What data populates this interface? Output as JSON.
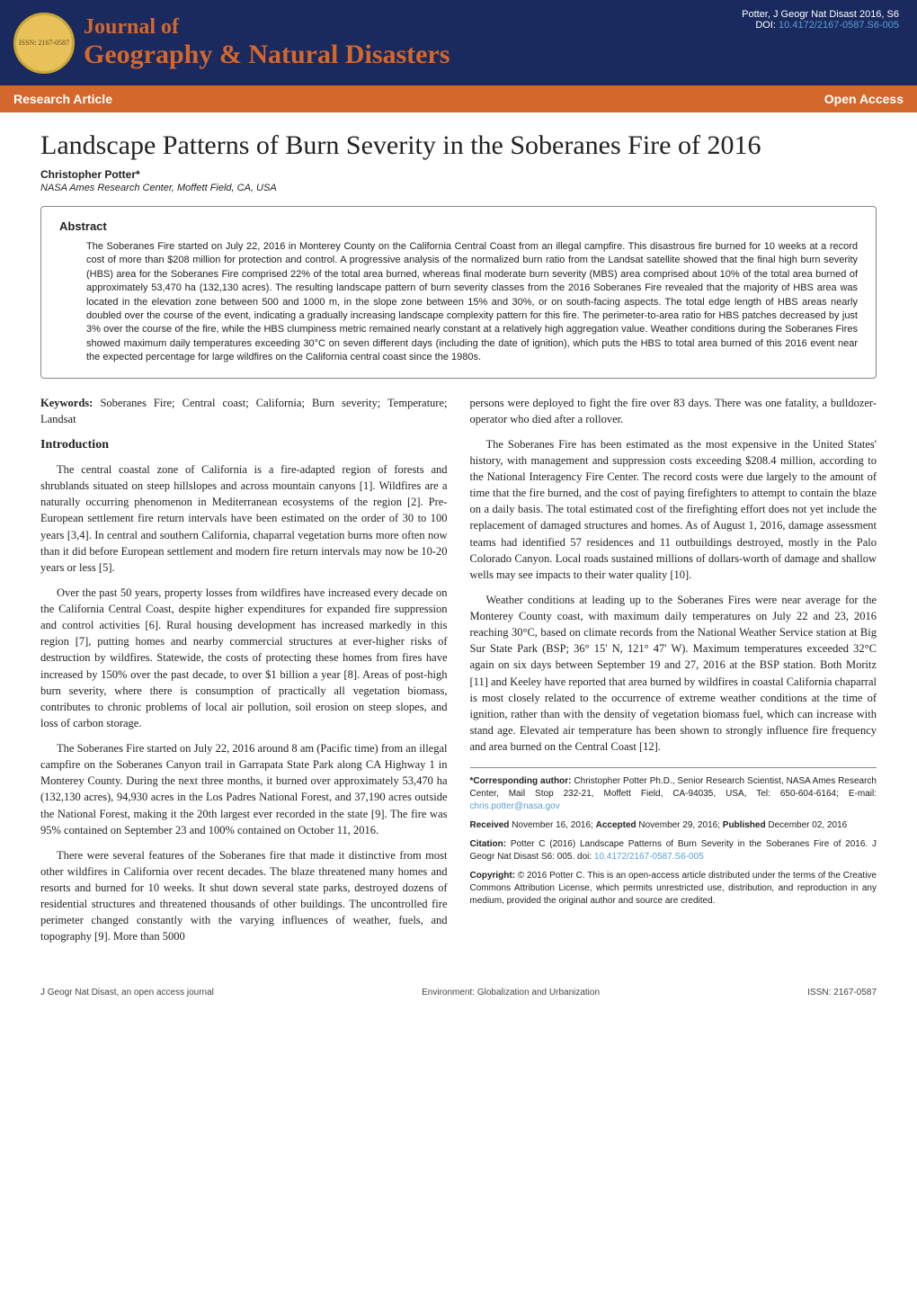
{
  "header": {
    "journal_of": "Journal of",
    "journal_name": "Geography & Natural Disasters",
    "issn_badge": "ISSN: 2167-0587",
    "citation_line": "Potter, J Geogr Nat Disast 2016, S6",
    "doi_label": "DOI:",
    "doi": "10.4172/2167-0587.S6-005"
  },
  "tabs": {
    "left": "Research Article",
    "right": "Open Access"
  },
  "article": {
    "title": "Landscape Patterns of Burn Severity in the Soberanes Fire of 2016",
    "author": "Christopher Potter*",
    "affiliation": "NASA Ames Research Center, Moffett Field, CA, USA"
  },
  "abstract": {
    "heading": "Abstract",
    "text": "The Soberanes Fire started on July 22, 2016 in Monterey County on the California Central Coast from an illegal campfire. This disastrous fire burned for 10 weeks at a record cost of more than $208 million for protection and control. A progressive analysis of the normalized burn ratio from the Landsat satellite showed that the final high burn severity (HBS) area for the Soberanes Fire comprised 22% of the total area burned, whereas final moderate burn severity (MBS) area comprised about 10% of the total area burned of approximately 53,470 ha (132,130 acres). The resulting landscape pattern of burn severity classes from the 2016 Soberanes Fire revealed that the majority of HBS area was located in the elevation zone between 500 and 1000 m, in the slope zone between 15% and 30%, or on south-facing aspects. The total edge length of HBS areas nearly doubled over the course of the event, indicating a gradually increasing landscape complexity pattern for this fire. The perimeter-to-area ratio for HBS patches decreased by just 3% over the course of the fire, while the HBS clumpiness metric remained nearly constant at a relatively high aggregation value. Weather conditions during the Soberanes Fires showed maximum daily temperatures exceeding 30°C on seven different days (including the date of ignition), which puts the HBS to total area burned of this 2016 event near the expected percentage for large wildfires on the California central coast since the 1980s."
  },
  "keywords": {
    "label": "Keywords:",
    "text": "Soberanes Fire; Central coast; California; Burn severity; Temperature; Landsat"
  },
  "intro": {
    "heading": "Introduction",
    "p1": "The central coastal zone of California is a fire-adapted region of forests and shrublands situated on steep hillslopes and across mountain canyons [1]. Wildfires are a naturally occurring phenomenon in Mediterranean ecosystems of the region [2]. Pre-European settlement fire return intervals have been estimated on the order of 30 to 100 years [3,4]. In central and southern California, chaparral vegetation burns more often now than it did before European settlement and modern fire return intervals may now be 10-20 years or less [5].",
    "p2": "Over the past 50 years, property losses from wildfires have increased every decade on the California Central Coast, despite higher expenditures for expanded fire suppression and control activities [6]. Rural housing development has increased markedly in this region [7], putting homes and nearby commercial structures at ever-higher risks of destruction by wildfires. Statewide, the costs of protecting these homes from fires have increased by 150% over the past decade, to over $1 billion a year [8]. Areas of post-high burn severity, where there is consumption of practically all vegetation biomass, contributes to chronic problems of local air pollution, soil erosion on steep slopes, and loss of carbon storage.",
    "p3": "The Soberanes Fire started on July 22, 2016 around 8 am (Pacific time) from an illegal campfire on the Soberanes Canyon trail in Garrapata State Park along CA Highway 1 in Monterey County. During the next three months, it burned over approximately 53,470 ha (132,130 acres), 94,930 acres in the Los Padres National Forest, and 37,190 acres outside the National Forest, making it the 20th largest ever recorded in the state [9]. The fire was 95% contained on September 23 and 100% contained on October 11, 2016.",
    "p4": "There were several features of the Soberanes fire that made it distinctive from most other wildfires in California over recent decades. The blaze threatened many homes and resorts and burned for 10 weeks. It shut down several state parks, destroyed dozens of residential structures and threatened thousands of other buildings. The uncontrolled fire perimeter changed constantly with the varying influences of weather, fuels, and topography [9]. More than 5000"
  },
  "right_col": {
    "p1": "persons were deployed to fight the fire over 83 days. There was one fatality, a bulldozer-operator who died after a rollover.",
    "p2": "The Soberanes Fire has been estimated as the most expensive in the United States' history, with management and suppression costs exceeding $208.4 million, according to the National Interagency Fire Center. The record costs were due largely to the amount of time that the fire burned, and the cost of paying firefighters to attempt to contain the blaze on a daily basis. The total estimated cost of the firefighting effort does not yet include the replacement of damaged structures and homes. As of August 1, 2016, damage assessment teams had identified 57 residences and 11 outbuildings destroyed, mostly in the Palo Colorado Canyon. Local roads sustained millions of dollars-worth of damage and shallow wells may see impacts to their water quality [10].",
    "p3": "Weather conditions at leading up to the Soberanes Fires were near average for the Monterey County coast, with maximum daily temperatures on July 22 and 23, 2016 reaching 30°C, based on climate records from the National Weather Service station at Big Sur State Park (BSP; 36° 15' N, 121° 47' W). Maximum temperatures exceeded 32°C again on six days between September 19 and 27, 2016 at the BSP station. Both Moritz [11] and Keeley have reported that area burned by wildfires in coastal California chaparral is most closely related to the occurrence of extreme weather conditions at the time of ignition, rather than with the density of vegetation biomass fuel, which can increase with stand age. Elevated air temperature has been shown to strongly influence fire frequency and area burned on the Central Coast [12]."
  },
  "corr": {
    "author_label": "*Corresponding author:",
    "author_text": " Christopher Potter Ph.D., Senior Research Scientist, NASA Ames Research Center, Mail Stop 232-21, Moffett Field, CA-94035, USA, Tel: 650-604-6164; E-mail: ",
    "email": "chris.potter@nasa.gov",
    "received_label": "Received",
    "received_date": " November 16, 2016; ",
    "accepted_label": "Accepted",
    "accepted_date": " November 29, 2016; ",
    "published_label": "Published",
    "published_date": " December 02, 2016",
    "citation_label": "Citation:",
    "citation_text": " Potter C (2016)  Landscape Patterns of Burn Severity in the Soberanes Fire of 2016. J Geogr Nat Disast S6: 005. doi: ",
    "citation_doi": "10.4172/2167-0587.S6-005",
    "copyright_label": "Copyright:",
    "copyright_text": " © 2016 Potter C. This is an open-access article distributed under the terms of the Creative Commons Attribution License, which permits unrestricted use, distribution, and reproduction in any medium, provided the original author and source are credited."
  },
  "footer": {
    "left": "J Geogr Nat Disast, an open access journal",
    "center": "Environment: Globalization and Urbanization",
    "right": "ISSN: 2167-0587"
  },
  "colors": {
    "header_bg": "#1a2a5e",
    "tab_bg": "#d4672c",
    "journal_text": "#d4672c",
    "link": "#5a9fd4",
    "badge_bg": "#e8c15a"
  }
}
